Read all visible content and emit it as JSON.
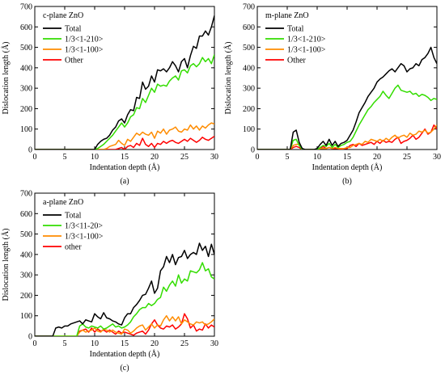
{
  "chart_data": [
    {
      "type": "line",
      "title": "c-plane ZnO",
      "caption": "(a)",
      "xlabel": "Indentation depth (Å)",
      "ylabel": "Dislocation length (Å)",
      "xlim": [
        0,
        30
      ],
      "ylim": [
        0,
        700
      ],
      "xticks": [
        0,
        5,
        10,
        15,
        20,
        25,
        30
      ],
      "yticks": [
        0,
        100,
        200,
        300,
        400,
        500,
        600,
        700
      ],
      "grid": false,
      "legend": "top-left",
      "x": [
        0,
        0.5,
        1,
        1.5,
        2,
        2.5,
        3,
        3.5,
        4,
        4.5,
        5,
        5.5,
        6,
        6.5,
        7,
        7.5,
        8,
        8.5,
        9,
        9.5,
        10,
        10.5,
        11,
        11.5,
        12,
        12.5,
        13,
        13.5,
        14,
        14.5,
        15,
        15.5,
        16,
        16.5,
        17,
        17.5,
        18,
        18.5,
        19,
        19.5,
        20,
        20.5,
        21,
        21.5,
        22,
        22.5,
        23,
        23.5,
        24,
        24.5,
        25,
        25.5,
        26,
        26.5,
        27,
        27.5,
        28,
        28.5,
        29,
        29.5,
        30
      ],
      "series": [
        {
          "name": "Total",
          "color": "#000000",
          "values": [
            0,
            0,
            0,
            0,
            0,
            0,
            0,
            0,
            0,
            0,
            0,
            0,
            0,
            0,
            0,
            0,
            0,
            0,
            0,
            0,
            0,
            25,
            40,
            50,
            55,
            70,
            95,
            110,
            140,
            150,
            130,
            170,
            195,
            190,
            255,
            250,
            330,
            295,
            310,
            360,
            330,
            390,
            385,
            395,
            380,
            400,
            430,
            410,
            380,
            430,
            445,
            400,
            460,
            505,
            495,
            555,
            555,
            580,
            560,
            600,
            655
          ]
        },
        {
          "name": "1/3<1-210>",
          "color": "#33dd00",
          "values": [
            0,
            0,
            0,
            0,
            0,
            0,
            0,
            0,
            0,
            0,
            0,
            0,
            0,
            0,
            0,
            0,
            0,
            0,
            0,
            0,
            0,
            5,
            15,
            25,
            40,
            55,
            70,
            90,
            110,
            130,
            110,
            130,
            160,
            170,
            205,
            200,
            250,
            230,
            265,
            300,
            280,
            320,
            310,
            315,
            310,
            335,
            350,
            360,
            340,
            385,
            390,
            375,
            410,
            420,
            405,
            420,
            450,
            430,
            445,
            420,
            465
          ]
        },
        {
          "name": "1/3<1-100>",
          "color": "#ff8c00",
          "values": [
            0,
            0,
            0,
            0,
            0,
            0,
            0,
            0,
            0,
            0,
            0,
            0,
            0,
            0,
            0,
            0,
            0,
            0,
            0,
            0,
            0,
            0,
            0,
            0,
            5,
            15,
            20,
            25,
            45,
            30,
            20,
            50,
            40,
            60,
            80,
            70,
            85,
            75,
            70,
            85,
            55,
            90,
            80,
            100,
            75,
            95,
            100,
            110,
            90,
            85,
            100,
            95,
            120,
            100,
            115,
            95,
            115,
            105,
            120,
            130,
            125
          ]
        },
        {
          "name": "Other",
          "color": "#ff0000",
          "values": [
            0,
            0,
            0,
            0,
            0,
            0,
            0,
            0,
            0,
            0,
            0,
            0,
            0,
            0,
            0,
            0,
            0,
            0,
            0,
            0,
            0,
            0,
            0,
            0,
            0,
            0,
            0,
            0,
            5,
            10,
            0,
            15,
            20,
            10,
            30,
            20,
            55,
            25,
            15,
            30,
            10,
            30,
            25,
            40,
            30,
            40,
            45,
            35,
            30,
            40,
            50,
            40,
            55,
            45,
            35,
            45,
            60,
            50,
            45,
            55,
            65
          ]
        }
      ]
    },
    {
      "type": "line",
      "title": "m-plane ZnO",
      "caption": "(b)",
      "xlabel": "Indentation depth (Å)",
      "ylabel": "Dislocation length (Å)",
      "xlim": [
        0,
        30
      ],
      "ylim": [
        0,
        700
      ],
      "xticks": [
        0,
        5,
        10,
        15,
        20,
        25,
        30
      ],
      "yticks": [
        0,
        100,
        200,
        300,
        400,
        500,
        600,
        700
      ],
      "grid": false,
      "legend": "top-left",
      "x": [
        0,
        0.5,
        1,
        1.5,
        2,
        2.5,
        3,
        3.5,
        4,
        4.5,
        5,
        5.5,
        6,
        6.5,
        7,
        7.5,
        8,
        8.5,
        9,
        9.5,
        10,
        10.5,
        11,
        11.5,
        12,
        12.5,
        13,
        13.5,
        14,
        14.5,
        15,
        15.5,
        16,
        16.5,
        17,
        17.5,
        18,
        18.5,
        19,
        19.5,
        20,
        20.5,
        21,
        21.5,
        22,
        22.5,
        23,
        23.5,
        24,
        24.5,
        25,
        25.5,
        26,
        26.5,
        27,
        27.5,
        28,
        28.5,
        29,
        29.5,
        30
      ],
      "series": [
        {
          "name": "Total",
          "color": "#000000",
          "values": [
            0,
            0,
            0,
            0,
            0,
            0,
            0,
            0,
            0,
            0,
            0,
            0,
            85,
            95,
            35,
            5,
            0,
            0,
            0,
            0,
            5,
            25,
            40,
            20,
            50,
            20,
            40,
            15,
            30,
            35,
            45,
            70,
            95,
            135,
            180,
            205,
            230,
            260,
            280,
            300,
            330,
            345,
            355,
            370,
            385,
            395,
            380,
            400,
            420,
            410,
            380,
            395,
            400,
            420,
            410,
            440,
            450,
            470,
            500,
            450,
            420
          ]
        },
        {
          "name": "1/3<1-210>",
          "color": "#33dd00",
          "values": [
            0,
            0,
            0,
            0,
            0,
            0,
            0,
            0,
            0,
            0,
            0,
            0,
            45,
            50,
            20,
            0,
            0,
            0,
            0,
            0,
            0,
            10,
            20,
            15,
            30,
            10,
            25,
            10,
            20,
            25,
            35,
            40,
            60,
            90,
            120,
            145,
            170,
            195,
            210,
            230,
            245,
            260,
            285,
            265,
            250,
            275,
            300,
            315,
            290,
            285,
            280,
            285,
            270,
            275,
            260,
            270,
            265,
            255,
            240,
            250,
            245
          ]
        },
        {
          "name": "1/3<1-100>",
          "color": "#ff8c00",
          "values": [
            0,
            0,
            0,
            0,
            0,
            0,
            0,
            0,
            0,
            0,
            0,
            0,
            20,
            25,
            25,
            0,
            0,
            0,
            0,
            0,
            0,
            5,
            5,
            5,
            10,
            5,
            10,
            5,
            5,
            5,
            10,
            10,
            20,
            25,
            30,
            25,
            40,
            35,
            50,
            45,
            40,
            50,
            40,
            55,
            45,
            60,
            70,
            55,
            65,
            70,
            60,
            80,
            70,
            75,
            90,
            85,
            95,
            80,
            85,
            100,
            120
          ]
        },
        {
          "name": "Other",
          "color": "#ff0000",
          "values": [
            0,
            0,
            0,
            0,
            0,
            0,
            0,
            0,
            0,
            0,
            0,
            0,
            10,
            15,
            10,
            0,
            0,
            0,
            0,
            0,
            0,
            5,
            15,
            5,
            10,
            5,
            5,
            5,
            0,
            5,
            5,
            20,
            25,
            15,
            30,
            20,
            25,
            30,
            35,
            25,
            40,
            30,
            45,
            35,
            40,
            35,
            50,
            60,
            30,
            40,
            45,
            55,
            70,
            50,
            60,
            80,
            100,
            75,
            85,
            120,
            100
          ]
        }
      ]
    },
    {
      "type": "line",
      "title": "a-plane ZnO",
      "caption": "(c)",
      "xlabel": "Indentation depth (Å)",
      "ylabel": "Dislocation length (Å)",
      "xlim": [
        0,
        30
      ],
      "ylim": [
        0,
        700
      ],
      "xticks": [
        0,
        5,
        10,
        15,
        20,
        25,
        30
      ],
      "yticks": [
        0,
        100,
        200,
        300,
        400,
        500,
        600,
        700
      ],
      "grid": false,
      "legend": "top-left",
      "x": [
        0,
        0.5,
        1,
        1.5,
        2,
        2.5,
        3,
        3.5,
        4,
        4.5,
        5,
        5.5,
        6,
        6.5,
        7,
        7.5,
        8,
        8.5,
        9,
        9.5,
        10,
        10.5,
        11,
        11.5,
        12,
        12.5,
        13,
        13.5,
        14,
        14.5,
        15,
        15.5,
        16,
        16.5,
        17,
        17.5,
        18,
        18.5,
        19,
        19.5,
        20,
        20.5,
        21,
        21.5,
        22,
        22.5,
        23,
        23.5,
        24,
        24.5,
        25,
        25.5,
        26,
        26.5,
        27,
        27.5,
        28,
        28.5,
        29,
        29.5,
        30
      ],
      "series": [
        {
          "name": "Total",
          "color": "#000000",
          "values": [
            0,
            0,
            0,
            0,
            0,
            0,
            0,
            40,
            45,
            40,
            50,
            50,
            60,
            65,
            70,
            75,
            60,
            80,
            75,
            70,
            110,
            95,
            85,
            115,
            90,
            85,
            75,
            70,
            60,
            55,
            90,
            110,
            110,
            140,
            155,
            175,
            200,
            205,
            235,
            270,
            210,
            235,
            320,
            340,
            390,
            360,
            400,
            350,
            385,
            390,
            420,
            380,
            400,
            410,
            400,
            455,
            420,
            440,
            390,
            450,
            400
          ]
        },
        {
          "name": "1/3<11-20>",
          "color": "#33dd00",
          "values": [
            0,
            0,
            0,
            0,
            0,
            0,
            0,
            0,
            0,
            0,
            0,
            0,
            0,
            0,
            0,
            50,
            60,
            45,
            40,
            50,
            45,
            40,
            50,
            35,
            40,
            50,
            60,
            45,
            50,
            40,
            45,
            55,
            70,
            95,
            110,
            130,
            140,
            140,
            160,
            150,
            160,
            180,
            190,
            240,
            220,
            250,
            270,
            245,
            300,
            260,
            280,
            270,
            320,
            315,
            310,
            325,
            360,
            320,
            330,
            290,
            280
          ]
        },
        {
          "name": "1/3<1-100>",
          "color": "#ff8c00",
          "values": [
            0,
            0,
            0,
            0,
            0,
            0,
            0,
            0,
            0,
            0,
            0,
            0,
            0,
            0,
            0,
            20,
            30,
            20,
            25,
            30,
            40,
            25,
            20,
            35,
            30,
            20,
            30,
            20,
            15,
            10,
            35,
            30,
            15,
            25,
            40,
            50,
            55,
            30,
            45,
            60,
            40,
            55,
            50,
            80,
            100,
            75,
            95,
            75,
            95,
            60,
            80,
            70,
            60,
            55,
            70,
            65,
            70,
            55,
            60,
            70,
            85
          ]
        },
        {
          "name": "other",
          "color": "#ff0000",
          "values": [
            0,
            0,
            0,
            0,
            0,
            0,
            0,
            0,
            0,
            0,
            0,
            0,
            0,
            0,
            0,
            25,
            30,
            35,
            20,
            40,
            20,
            35,
            25,
            30,
            20,
            30,
            20,
            10,
            25,
            15,
            20,
            15,
            10,
            5,
            15,
            20,
            25,
            10,
            30,
            60,
            80,
            55,
            40,
            35,
            50,
            45,
            55,
            35,
            45,
            60,
            110,
            85,
            40,
            55,
            25,
            35,
            30,
            60,
            40,
            55,
            45
          ]
        }
      ]
    }
  ]
}
